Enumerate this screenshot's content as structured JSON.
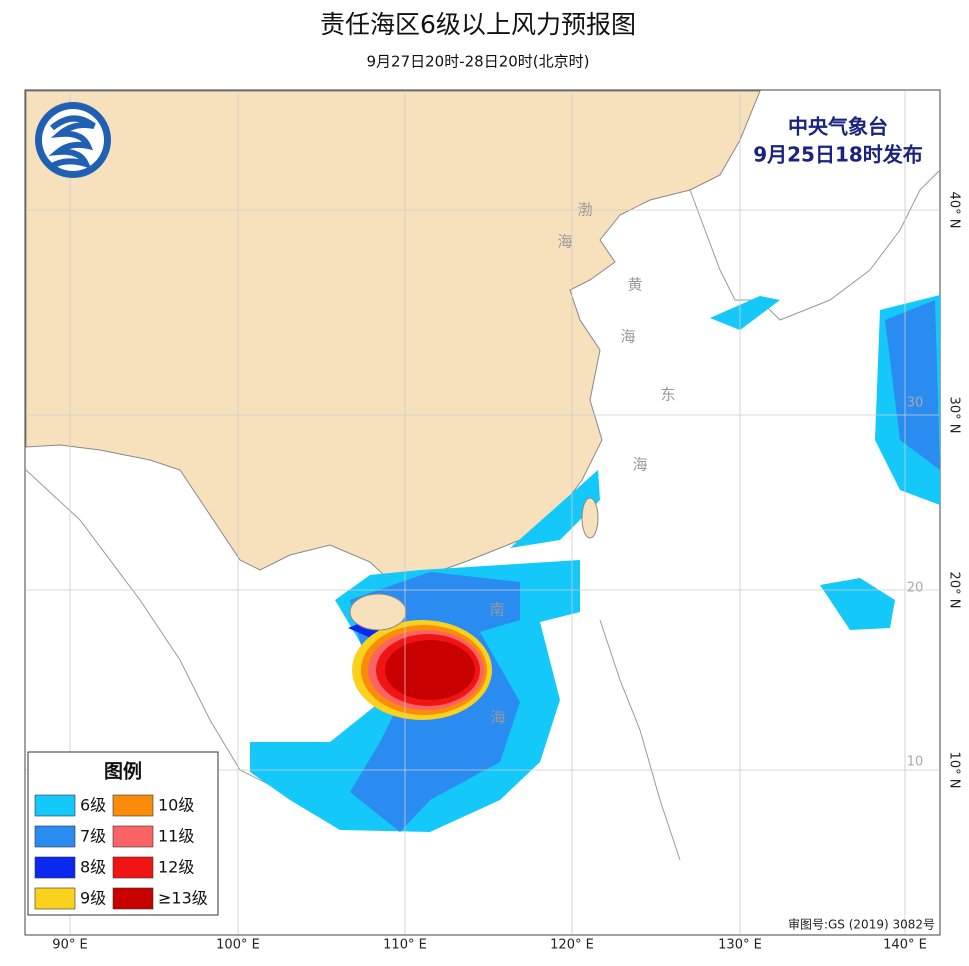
{
  "header": {
    "title": "责任海区6级以上风力预报图",
    "subtitle": "9月27日20时-28日20时(北京时)"
  },
  "issuer": {
    "agency": "中央气象台",
    "issued": "9月25日18时发布"
  },
  "legend": {
    "title": "图例",
    "items": [
      {
        "label": "6级",
        "color": "#14c8fa"
      },
      {
        "label": "7级",
        "color": "#2a8cf0"
      },
      {
        "label": "8级",
        "color": "#0a28f0"
      },
      {
        "label": "9级",
        "color": "#fad21e"
      },
      {
        "label": "10级",
        "color": "#fa8c0a"
      },
      {
        "label": "11级",
        "color": "#fa6464"
      },
      {
        "label": "12级",
        "color": "#f01414"
      },
      {
        "label": "≥13级",
        "color": "#c80000"
      }
    ]
  },
  "sea_labels": [
    "渤",
    "海",
    "黄",
    "海",
    "东",
    "海",
    "南",
    "海"
  ],
  "longitude_labels": [
    "90° E",
    "100° E",
    "110° E",
    "120° E",
    "130° E",
    "140° E"
  ],
  "latitude_labels": [
    "40° N",
    "30° N",
    "20° N",
    "10° N"
  ],
  "grid_labels": [
    "30",
    "20",
    "10"
  ],
  "footer": "审图号:GS (2019) 3082号"
}
